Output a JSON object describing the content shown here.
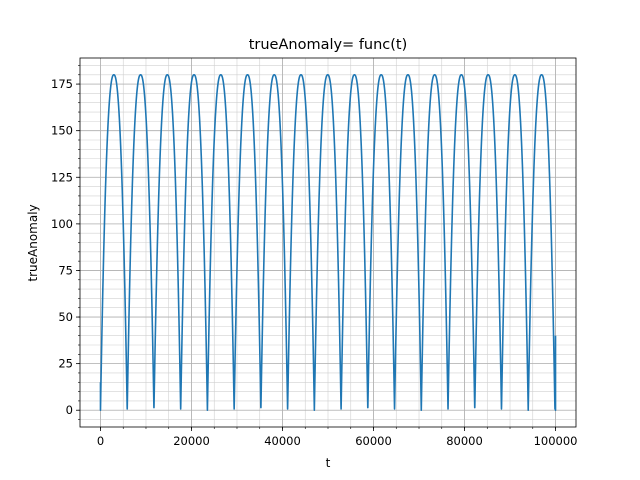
{
  "chart_data": {
    "type": "line",
    "title": "trueAnomaly= func(t)",
    "xlabel": "t",
    "ylabel": "trueAnomaly",
    "xlim": [
      -4500,
      104500
    ],
    "ylim": [
      -9,
      189
    ],
    "grid": true,
    "minor_grid": true,
    "x_ticks": [
      0,
      20000,
      40000,
      60000,
      80000,
      100000
    ],
    "x_tick_labels": [
      "0",
      "20000",
      "40000",
      "60000",
      "80000",
      "100000"
    ],
    "x_minor_step": 5000,
    "y_ticks": [
      0,
      25,
      50,
      75,
      100,
      125,
      150,
      175
    ],
    "y_tick_labels": [
      "0",
      "25",
      "50",
      "75",
      "100",
      "125",
      "150",
      "175"
    ],
    "y_minor_step": 5,
    "series": [
      {
        "color": "#1f77b4",
        "period": 5875,
        "t_start": 0,
        "t_end": 100000,
        "value_at_start": 15,
        "value_at_end": 40,
        "peak": 180,
        "peak_times": [
          3000,
          8900,
          14800,
          20700,
          26600,
          32500,
          38400,
          44300,
          50200,
          56100,
          62000,
          67900,
          73800,
          79700,
          85600,
          91500,
          97400
        ],
        "zero_times": [
          0,
          5900,
          11800,
          17700,
          23600,
          29500,
          35400,
          41300,
          47200,
          53100,
          59000,
          64900,
          70800,
          76700,
          82600,
          88500,
          94400,
          100000
        ]
      }
    ]
  }
}
